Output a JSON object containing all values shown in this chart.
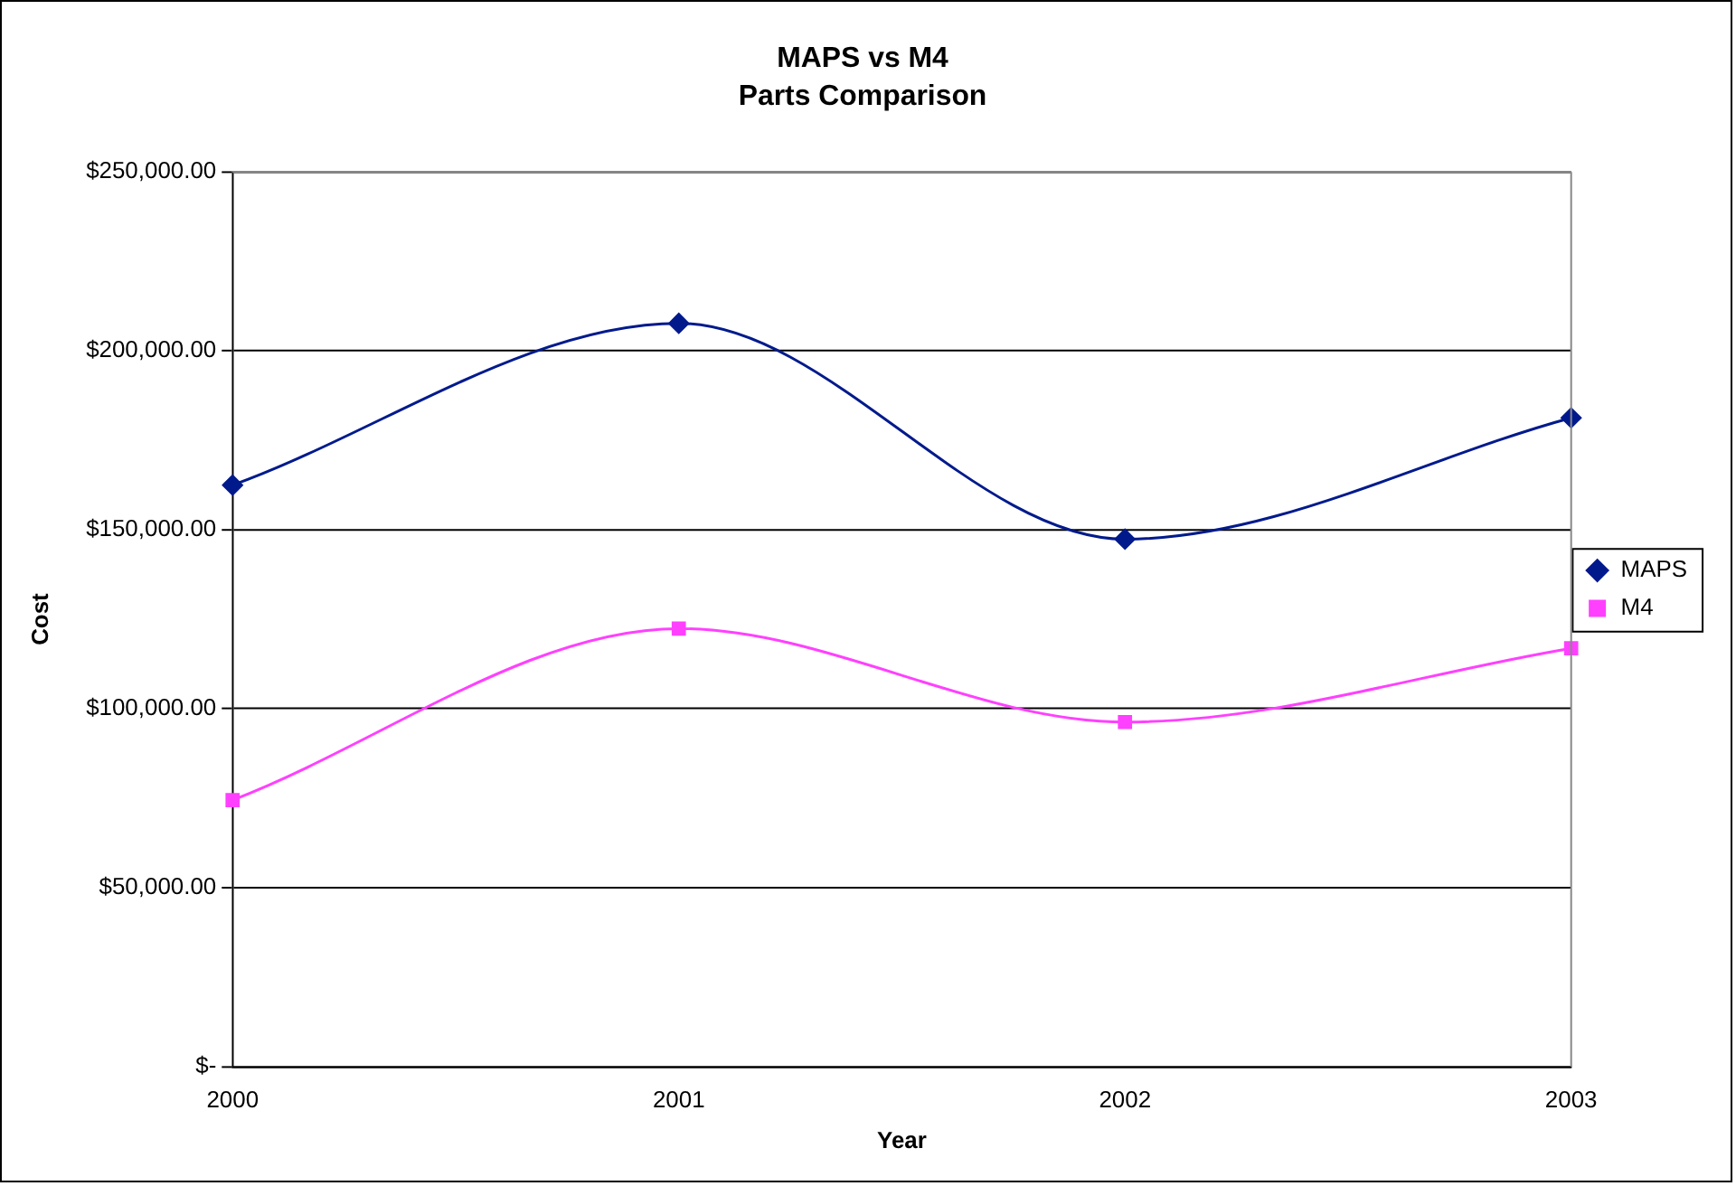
{
  "chart_data": {
    "type": "line",
    "title": "MAPS vs M4",
    "subtitle": "Parts Comparison",
    "xlabel": "Year",
    "ylabel": "Cost",
    "categories": [
      "2000",
      "2001",
      "2002",
      "2003"
    ],
    "series": [
      {
        "name": "MAPS",
        "color": "#001a8c",
        "marker": "diamond",
        "values": [
          162500,
          207700,
          147400,
          181300
        ]
      },
      {
        "name": "M4",
        "color": "#ff40ff",
        "marker": "square",
        "values": [
          74500,
          122400,
          96300,
          116900
        ]
      }
    ],
    "ylim": [
      0,
      250000
    ],
    "yticks": [
      {
        "value": 0,
        "label": "$-"
      },
      {
        "value": 50000,
        "label": "$50,000.00"
      },
      {
        "value": 100000,
        "label": "$100,000.00"
      },
      {
        "value": 150000,
        "label": "$150,000.00"
      },
      {
        "value": 200000,
        "label": "$200,000.00"
      },
      {
        "value": 250000,
        "label": "$250,000.00"
      }
    ],
    "grid": "y",
    "legend": "right",
    "line_style": "solid"
  }
}
